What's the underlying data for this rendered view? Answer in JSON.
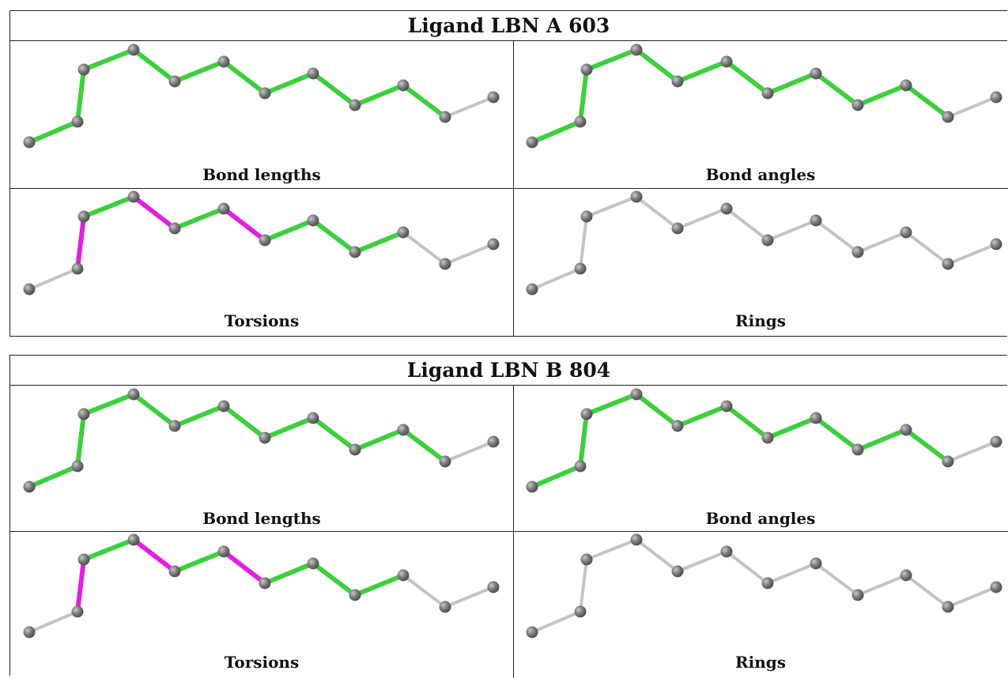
{
  "colors": {
    "good": "#3ecf3e",
    "outlier": "#e020e0",
    "neutral": "#c4c4c4",
    "atom": "#777777"
  },
  "ligands": [
    {
      "title": "Ligand LBN A 603",
      "panels": [
        {
          "label": "Bond lengths",
          "bonds": [
            "good",
            "good",
            "good",
            "good",
            "good",
            "good",
            "good",
            "good",
            "good",
            "good"
          ]
        },
        {
          "label": "Bond angles",
          "bonds": [
            "good",
            "good",
            "good",
            "good",
            "good",
            "good",
            "good",
            "good",
            "good",
            "good"
          ]
        },
        {
          "label": "Torsions",
          "bonds": [
            "neutral",
            "outlier",
            "good",
            "outlier",
            "good",
            "outlier",
            "good",
            "good",
            "good",
            "neutral"
          ]
        },
        {
          "label": "Rings",
          "bonds": [
            "neutral",
            "neutral",
            "neutral",
            "neutral",
            "neutral",
            "neutral",
            "neutral",
            "neutral",
            "neutral",
            "neutral"
          ]
        }
      ]
    },
    {
      "title": "Ligand LBN B 804",
      "panels": [
        {
          "label": "Bond lengths",
          "bonds": [
            "good",
            "good",
            "good",
            "good",
            "good",
            "good",
            "good",
            "good",
            "good",
            "good"
          ]
        },
        {
          "label": "Bond angles",
          "bonds": [
            "good",
            "good",
            "good",
            "good",
            "good",
            "good",
            "good",
            "good",
            "good",
            "good"
          ]
        },
        {
          "label": "Torsions",
          "bonds": [
            "neutral",
            "outlier",
            "good",
            "outlier",
            "good",
            "outlier",
            "good",
            "good",
            "good",
            "neutral"
          ]
        },
        {
          "label": "Rings",
          "bonds": [
            "neutral",
            "neutral",
            "neutral",
            "neutral",
            "neutral",
            "neutral",
            "neutral",
            "neutral",
            "neutral",
            "neutral"
          ]
        }
      ]
    }
  ]
}
